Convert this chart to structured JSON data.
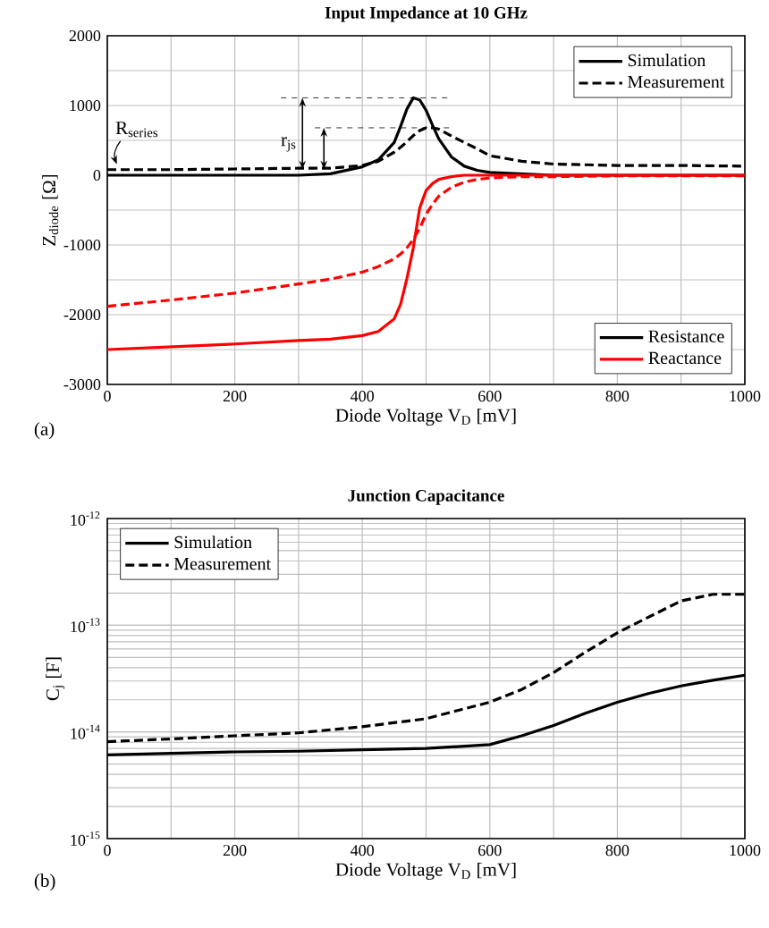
{
  "chart_data": [
    {
      "type": "line",
      "title": "Input Impedance at 10 GHz",
      "xlabel": "Diode Voltage V$_{D}$ [mV]",
      "ylabel": "Z$_{diode}$ [Ω]",
      "x": [
        0,
        100,
        200,
        300,
        350,
        400,
        425,
        450,
        460,
        470,
        480,
        490,
        500,
        510,
        520,
        540,
        560,
        580,
        600,
        650,
        700,
        800,
        900,
        1000
      ],
      "series": [
        {
          "name": "Simulation",
          "color": "#000000",
          "line_style": "solid",
          "values": [
            0,
            0,
            0,
            0,
            20,
            120,
            220,
            470,
            700,
            950,
            1110,
            1080,
            930,
            720,
            520,
            260,
            130,
            70,
            40,
            20,
            0,
            0,
            0,
            0
          ]
        },
        {
          "name": "Measurement",
          "color": "#000000",
          "line_style": "dashed",
          "values": [
            80,
            80,
            90,
            100,
            100,
            140,
            200,
            330,
            400,
            480,
            570,
            640,
            680,
            680,
            660,
            560,
            470,
            380,
            280,
            200,
            160,
            140,
            140,
            130
          ]
        },
        {
          "name": "Reactance",
          "color": "#ff0000",
          "line_style": "solid",
          "values": [
            -2500,
            -2460,
            -2420,
            -2370,
            -2350,
            -2300,
            -2240,
            -2060,
            -1850,
            -1480,
            -1040,
            -470,
            -220,
            -120,
            -60,
            -20,
            0,
            0,
            0,
            0,
            0,
            0,
            0,
            0
          ]
        },
        {
          "color": "#ff0000",
          "line_style": "dashed",
          "values": [
            -1880,
            -1790,
            -1690,
            -1560,
            -1490,
            -1390,
            -1310,
            -1200,
            -1130,
            -1040,
            -920,
            -760,
            -560,
            -420,
            -300,
            -170,
            -100,
            -60,
            -40,
            -20,
            -20,
            -10,
            -10,
            -10
          ]
        }
      ],
      "xlim": [
        0,
        1000
      ],
      "ylim": [
        -3000,
        2000
      ],
      "xticks": [
        0,
        200,
        400,
        600,
        800,
        1000
      ],
      "yticks": [
        -3000,
        -2000,
        -1000,
        0,
        1000,
        2000
      ],
      "grid": true,
      "legend": "top right",
      "annotations": [
        {
          "text": "R$_{series}$",
          "x": 15,
          "y": 80
        },
        "Resistance",
        "(a)"
      ],
      "ref_lines": [
        {
          "axis": "y",
          "value": 1110,
          "label": "r$_{js}$",
          "line_style": "dashed",
          "color": "#000000"
        },
        {
          "axis": "y",
          "value": 680,
          "line_style": "dashed",
          "color": "#000000"
        }
      ]
    },
    {
      "type": "line",
      "title": "Junction Capacitance",
      "xlabel": "Diode Voltage V$_{D}$ [mV]",
      "ylabel": "C$_{j}$ [F]",
      "x": [
        0,
        100,
        200,
        300,
        400,
        500,
        600,
        650,
        700,
        750,
        800,
        850,
        900,
        950,
        1000
      ],
      "series": [
        {
          "name": "Simulation",
          "color": "#000000",
          "line_style": "solid",
          "values": [
            6.1e-15,
            6.3e-15,
            6.5e-15,
            6.6e-15,
            6.8e-15,
            7e-15,
            7.6e-15,
            9.2e-15,
            1.15e-14,
            1.5e-14,
            1.9e-14,
            2.3e-14,
            2.7e-14,
            3.05e-14,
            3.4e-14
          ]
        },
        {
          "name": "Measurement",
          "color": "#000000",
          "line_style": "dashed",
          "values": [
            8.1e-15,
            8.6e-15,
            9.2e-15,
            9.8e-15,
            1.12e-14,
            1.33e-14,
            1.9e-14,
            2.5e-14,
            3.6e-14,
            5.6e-14,
            8.5e-14,
            1.2e-13,
            1.69e-13,
            1.95e-13,
            1.95e-13
          ]
        }
      ],
      "xlim": [
        0,
        1000
      ],
      "ylim": [
        1e-15,
        1e-12
      ],
      "xticks": [
        0,
        200,
        400,
        600,
        800,
        1000
      ],
      "yticks": [
        {
          "value": 1e-15,
          "label": "10$^{-15}$"
        },
        {
          "value": 1e-14,
          "label": "10$^{-14}$"
        },
        {
          "value": 1e-13,
          "label": "10$^{-13}$"
        },
        {
          "value": 1e-12,
          "label": "10$^{-12}$"
        }
      ],
      "log": "y",
      "grid": true,
      "legend": "top left",
      "annotations": [
        "(b)"
      ]
    }
  ]
}
